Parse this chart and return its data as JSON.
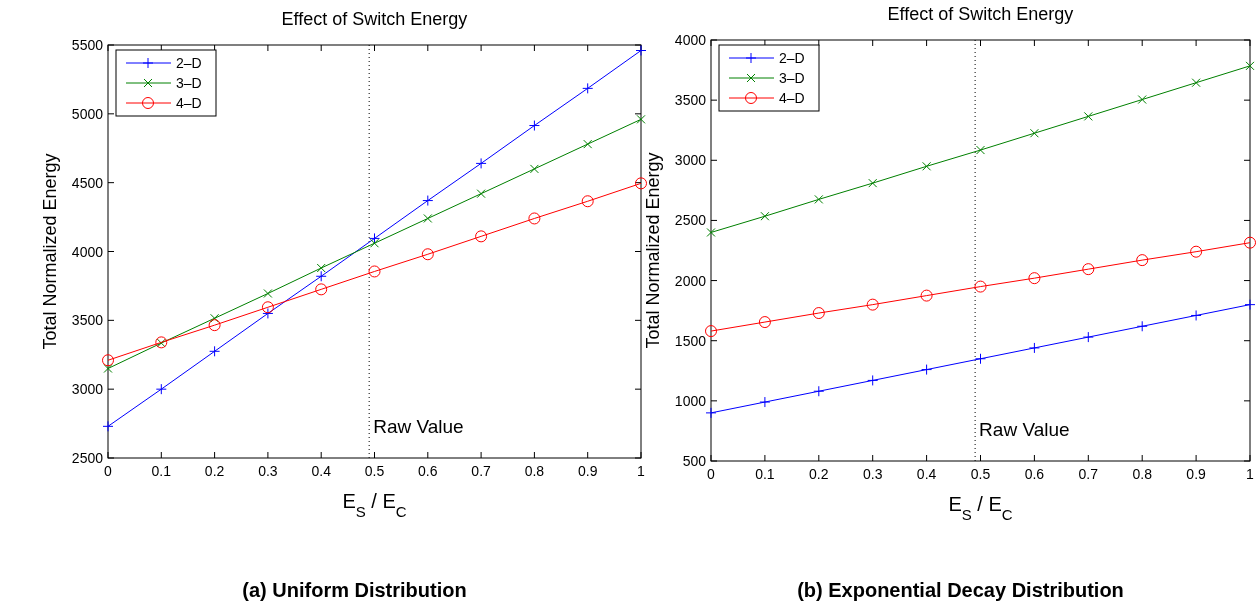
{
  "chart_data": [
    {
      "type": "line",
      "title": "Effect of Switch Energy",
      "xlabel": "E$_{S}$ / E$_{C}$",
      "ylabel": "Total Normalized Energy",
      "x": [
        0,
        0.1,
        0.2,
        0.3,
        0.4,
        0.5,
        0.6,
        0.7,
        0.8,
        0.9,
        1
      ],
      "xlim": [
        0,
        1
      ],
      "xticks": [
        0,
        0.1,
        0.2,
        0.3,
        0.4,
        0.5,
        0.6,
        0.7,
        0.8,
        0.9,
        1
      ],
      "ylim": [
        2500,
        5500
      ],
      "yticks": [
        2500,
        3000,
        3500,
        4000,
        4500,
        5000,
        5500
      ],
      "legend": "top left",
      "line_style": "solid",
      "annotations": [
        "(a) Uniform Distribution"
      ],
      "ref_lines": [
        {
          "axis": "x",
          "value": 0.49,
          "label": "Raw Value",
          "color": "#000000",
          "line_style": "dotted"
        }
      ],
      "series": [
        {
          "name": "2–D",
          "color": "#0000ff",
          "marker": "cross",
          "values": [
            2730,
            3000,
            3275,
            3550,
            3820,
            4095,
            4370,
            4640,
            4915,
            5185,
            5460
          ]
        },
        {
          "name": "3–D",
          "color": "#008000",
          "marker": "x",
          "values": [
            3150,
            3335,
            3515,
            3695,
            3880,
            4060,
            4240,
            4420,
            4600,
            4780,
            4960
          ]
        },
        {
          "name": "4–D",
          "color": "#ff0000",
          "marker": "circle",
          "values": [
            3210,
            3340,
            3465,
            3595,
            3725,
            3855,
            3980,
            4110,
            4240,
            4365,
            4495
          ]
        }
      ]
    },
    {
      "type": "line",
      "title": "Effect of Switch Energy",
      "xlabel": "E$_{S}$ / E$_{C}$",
      "ylabel": "Total Normalized Energy",
      "x": [
        0,
        0.1,
        0.2,
        0.3,
        0.4,
        0.5,
        0.6,
        0.7,
        0.8,
        0.9,
        1
      ],
      "xlim": [
        0,
        1
      ],
      "xticks": [
        0,
        0.1,
        0.2,
        0.3,
        0.4,
        0.5,
        0.6,
        0.7,
        0.8,
        0.9,
        1
      ],
      "ylim": [
        500,
        4000
      ],
      "yticks": [
        500,
        1000,
        1500,
        2000,
        2500,
        3000,
        3500,
        4000
      ],
      "legend": "top left",
      "line_style": "solid",
      "annotations": [
        "(b) Exponential Decay Distribution"
      ],
      "ref_lines": [
        {
          "axis": "x",
          "value": 0.49,
          "label": "Raw Value",
          "color": "#000000",
          "line_style": "dotted"
        }
      ],
      "series": [
        {
          "name": "2–D",
          "color": "#0000ff",
          "marker": "cross",
          "values": [
            900,
            990,
            1080,
            1170,
            1260,
            1350,
            1440,
            1530,
            1620,
            1710,
            1800
          ]
        },
        {
          "name": "3–D",
          "color": "#008000",
          "marker": "x",
          "values": [
            2400,
            2535,
            2675,
            2810,
            2950,
            3085,
            3225,
            3365,
            3505,
            3645,
            3785
          ]
        },
        {
          "name": "4–D",
          "color": "#ff0000",
          "marker": "circle",
          "values": [
            1580,
            1655,
            1730,
            1800,
            1875,
            1950,
            2020,
            2095,
            2170,
            2240,
            2315
          ]
        }
      ]
    }
  ]
}
